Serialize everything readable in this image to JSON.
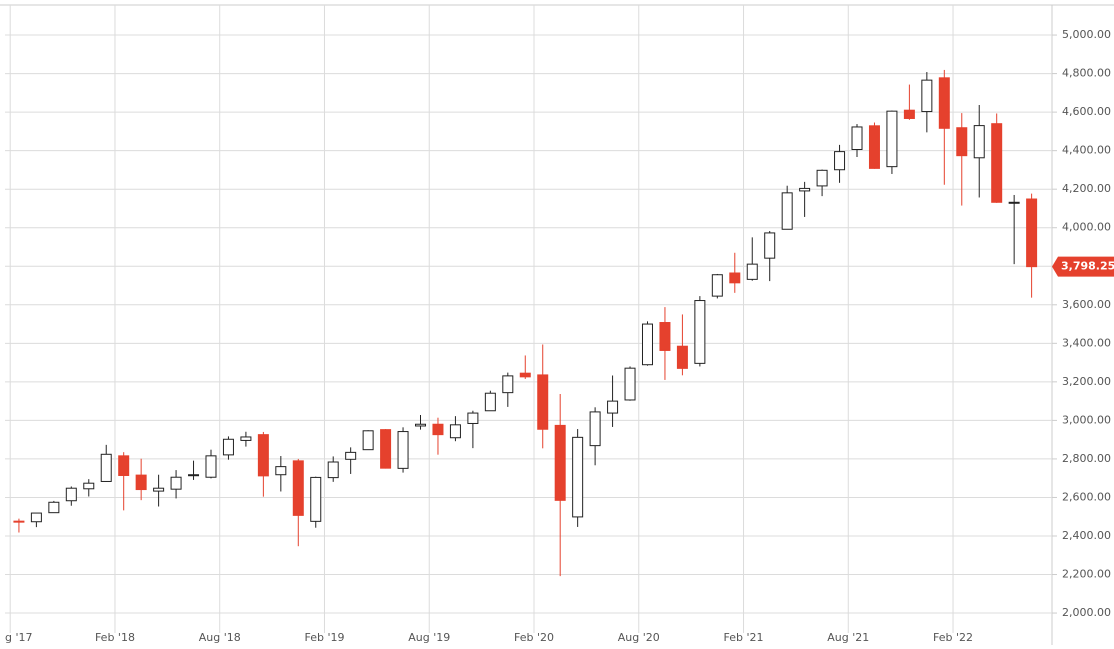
{
  "chart_data": {
    "type": "candlestick",
    "x": [
      "2017-08",
      "2017-09",
      "2017-10",
      "2017-11",
      "2017-12",
      "2018-01",
      "2018-02",
      "2018-03",
      "2018-04",
      "2018-05",
      "2018-06",
      "2018-07",
      "2018-08",
      "2018-09",
      "2018-10",
      "2018-11",
      "2018-12",
      "2019-01",
      "2019-02",
      "2019-03",
      "2019-04",
      "2019-05",
      "2019-06",
      "2019-07",
      "2019-08",
      "2019-09",
      "2019-10",
      "2019-11",
      "2019-12",
      "2020-01",
      "2020-02",
      "2020-03",
      "2020-04",
      "2020-05",
      "2020-06",
      "2020-07",
      "2020-08",
      "2020-09",
      "2020-10",
      "2020-11",
      "2020-12",
      "2021-01",
      "2021-02",
      "2021-03",
      "2021-04",
      "2021-05",
      "2021-06",
      "2021-07",
      "2021-08",
      "2021-09",
      "2021-10",
      "2021-11",
      "2021-12",
      "2022-01",
      "2022-02",
      "2022-03",
      "2022-04",
      "2022-05",
      "2022-06"
    ],
    "open": [
      2477,
      2474,
      2521,
      2583,
      2645,
      2683,
      2816,
      2716,
      2633,
      2643,
      2718,
      2705,
      2821,
      2896,
      2926,
      2718,
      2790,
      2476,
      2703,
      2798,
      2848,
      2952,
      2751,
      2971,
      2980,
      2910,
      2984,
      3050,
      3144,
      3245,
      3236,
      2974,
      2499,
      2869,
      3038,
      3106,
      3289,
      3508,
      3385,
      3296,
      3645,
      3765,
      3732,
      3842,
      3992,
      4191,
      4217,
      4301,
      4406,
      4529,
      4317,
      4610,
      4603,
      4778,
      4519,
      4363,
      4540,
      4130,
      4149
    ],
    "high": [
      2490,
      2519,
      2582,
      2657,
      2695,
      2873,
      2835,
      2801,
      2718,
      2742,
      2791,
      2848,
      2917,
      2941,
      2940,
      2815,
      2800,
      2708,
      2813,
      2860,
      2949,
      2955,
      2964,
      3028,
      3014,
      3022,
      3050,
      3154,
      3248,
      3337,
      3394,
      3137,
      2955,
      3068,
      3233,
      3280,
      3514,
      3588,
      3550,
      3645,
      3760,
      3870,
      3950,
      3983,
      4218,
      4238,
      4302,
      4430,
      4538,
      4546,
      4608,
      4743,
      4808,
      4819,
      4595,
      4637,
      4593,
      4170,
      4177
    ],
    "low": [
      2418,
      2446,
      2520,
      2557,
      2605,
      2682,
      2533,
      2586,
      2553,
      2595,
      2691,
      2699,
      2796,
      2864,
      2604,
      2631,
      2347,
      2443,
      2681,
      2722,
      2848,
      2750,
      2729,
      2952,
      2822,
      2892,
      2856,
      3050,
      3070,
      3215,
      2855,
      2192,
      2447,
      2767,
      2966,
      3102,
      3284,
      3210,
      3234,
      3280,
      3633,
      3662,
      3725,
      3723,
      3992,
      4056,
      4164,
      4233,
      4367,
      4306,
      4279,
      4560,
      4495,
      4223,
      4115,
      4157,
      4129,
      3811,
      3637
    ],
    "close": [
      2472,
      2519,
      2575,
      2648,
      2674,
      2824,
      2714,
      2641,
      2648,
      2705,
      2718,
      2816,
      2902,
      2914,
      2712,
      2760,
      2507,
      2704,
      2784,
      2834,
      2946,
      2752,
      2942,
      2980,
      2926,
      2977,
      3038,
      3141,
      3231,
      3226,
      2954,
      2585,
      2912,
      3044,
      3100,
      3271,
      3500,
      3363,
      3270,
      3622,
      3756,
      3714,
      3811,
      3973,
      4181,
      4204,
      4298,
      4395,
      4523,
      4308,
      4605,
      4567,
      4766,
      4516,
      4374,
      4530,
      4132,
      4132,
      3798
    ],
    "up_color": "#ffffff",
    "down_color": "#e5412d",
    "outline_color": "#222222",
    "last_price": {
      "value": 3798.25,
      "label": "3,798.25"
    },
    "ylim": [
      1938,
      5156
    ],
    "yticks": [
      {
        "value": 2000,
        "label": "2,000.00"
      },
      {
        "value": 2200,
        "label": "2,200.00"
      },
      {
        "value": 2400,
        "label": "2,400.00"
      },
      {
        "value": 2600,
        "label": "2,600.00"
      },
      {
        "value": 2800,
        "label": "2,800.00"
      },
      {
        "value": 3000,
        "label": "3,000.00"
      },
      {
        "value": 3200,
        "label": "3,200.00"
      },
      {
        "value": 3400,
        "label": "3,400.00"
      },
      {
        "value": 3600,
        "label": "3,600.00"
      },
      {
        "value": 3800,
        "label": "3,800.00"
      },
      {
        "value": 4000,
        "label": "4,000.00"
      },
      {
        "value": 4200,
        "label": "4,200.00"
      },
      {
        "value": 4400,
        "label": "4,400.00"
      },
      {
        "value": 4600,
        "label": "4,600.00"
      },
      {
        "value": 4800,
        "label": "4,800.00"
      },
      {
        "value": 5000,
        "label": "5,000.00"
      }
    ],
    "xticks": [
      {
        "value": "2017-08",
        "label": "g '17"
      },
      {
        "value": "2018-02",
        "label": "Feb '18"
      },
      {
        "value": "2018-08",
        "label": "Aug '18"
      },
      {
        "value": "2019-02",
        "label": "Feb '19"
      },
      {
        "value": "2019-08",
        "label": "Aug '19"
      },
      {
        "value": "2020-02",
        "label": "Feb '20"
      },
      {
        "value": "2020-08",
        "label": "Aug '20"
      },
      {
        "value": "2021-02",
        "label": "Feb '21"
      },
      {
        "value": "2021-08",
        "label": "Aug '21"
      },
      {
        "value": "2022-02",
        "label": "Feb '22"
      }
    ],
    "grid": true
  }
}
